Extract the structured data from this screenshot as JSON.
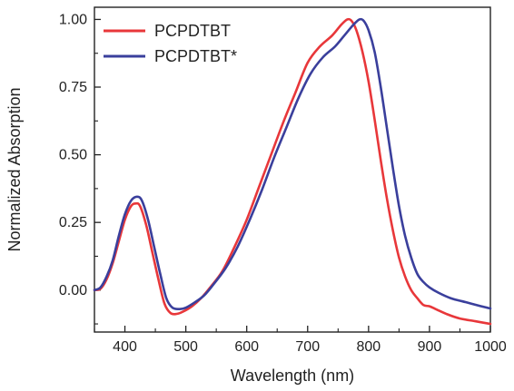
{
  "chart_data": {
    "type": "line",
    "xlabel": "Wavelength (nm)",
    "ylabel": "Normalized Absorption",
    "xlim": [
      350,
      1000
    ],
    "ylim": [
      -0.155,
      1.045
    ],
    "x_ticks": [
      400,
      500,
      600,
      700,
      800,
      900,
      1000
    ],
    "x_tick_labels": [
      "400",
      "500",
      "600",
      "700",
      "800",
      "900",
      "1000"
    ],
    "y_ticks": [
      0.0,
      0.25,
      0.5,
      0.75,
      1.0
    ],
    "y_tick_labels": [
      "0.00",
      "0.25",
      "0.50",
      "0.75",
      "1.00"
    ],
    "y_minor_ticks": [
      -0.125,
      0.125,
      0.375,
      0.625,
      0.875
    ],
    "grid": false,
    "legend_position": "top-left",
    "series": [
      {
        "name": "PCPDTBT",
        "color": "#e8373a",
        "points": [
          [
            350,
            0.0
          ],
          [
            360,
            0.005
          ],
          [
            370,
            0.04
          ],
          [
            380,
            0.1
          ],
          [
            390,
            0.18
          ],
          [
            400,
            0.26
          ],
          [
            410,
            0.31
          ],
          [
            418,
            0.32
          ],
          [
            425,
            0.31
          ],
          [
            435,
            0.24
          ],
          [
            445,
            0.14
          ],
          [
            455,
            0.04
          ],
          [
            465,
            -0.05
          ],
          [
            475,
            -0.085
          ],
          [
            485,
            -0.088
          ],
          [
            495,
            -0.08
          ],
          [
            510,
            -0.06
          ],
          [
            525,
            -0.03
          ],
          [
            540,
            0.01
          ],
          [
            560,
            0.07
          ],
          [
            580,
            0.16
          ],
          [
            600,
            0.26
          ],
          [
            620,
            0.38
          ],
          [
            640,
            0.5
          ],
          [
            660,
            0.62
          ],
          [
            680,
            0.73
          ],
          [
            700,
            0.84
          ],
          [
            720,
            0.9
          ],
          [
            740,
            0.94
          ],
          [
            755,
            0.98
          ],
          [
            765,
            1.0
          ],
          [
            772,
            0.995
          ],
          [
            780,
            0.96
          ],
          [
            790,
            0.88
          ],
          [
            800,
            0.77
          ],
          [
            810,
            0.63
          ],
          [
            820,
            0.48
          ],
          [
            830,
            0.34
          ],
          [
            840,
            0.22
          ],
          [
            850,
            0.12
          ],
          [
            860,
            0.05
          ],
          [
            870,
            0.0
          ],
          [
            880,
            -0.03
          ],
          [
            890,
            -0.055
          ],
          [
            900,
            -0.06
          ],
          [
            910,
            -0.07
          ],
          [
            930,
            -0.09
          ],
          [
            950,
            -0.105
          ],
          [
            975,
            -0.115
          ],
          [
            1000,
            -0.125
          ]
        ]
      },
      {
        "name": "PCPDTBT*",
        "color": "#3a3f9c",
        "points": [
          [
            350,
            0.0
          ],
          [
            360,
            0.01
          ],
          [
            370,
            0.05
          ],
          [
            380,
            0.11
          ],
          [
            390,
            0.2
          ],
          [
            400,
            0.28
          ],
          [
            410,
            0.33
          ],
          [
            420,
            0.345
          ],
          [
            428,
            0.33
          ],
          [
            438,
            0.26
          ],
          [
            448,
            0.16
          ],
          [
            458,
            0.06
          ],
          [
            468,
            -0.03
          ],
          [
            478,
            -0.065
          ],
          [
            490,
            -0.07
          ],
          [
            500,
            -0.065
          ],
          [
            515,
            -0.045
          ],
          [
            530,
            -0.02
          ],
          [
            545,
            0.02
          ],
          [
            565,
            0.08
          ],
          [
            585,
            0.16
          ],
          [
            605,
            0.26
          ],
          [
            625,
            0.37
          ],
          [
            645,
            0.49
          ],
          [
            665,
            0.6
          ],
          [
            685,
            0.71
          ],
          [
            705,
            0.8
          ],
          [
            725,
            0.86
          ],
          [
            745,
            0.9
          ],
          [
            760,
            0.94
          ],
          [
            775,
            0.98
          ],
          [
            785,
            1.0
          ],
          [
            792,
            0.995
          ],
          [
            800,
            0.96
          ],
          [
            810,
            0.88
          ],
          [
            820,
            0.75
          ],
          [
            830,
            0.6
          ],
          [
            840,
            0.45
          ],
          [
            850,
            0.31
          ],
          [
            860,
            0.2
          ],
          [
            870,
            0.12
          ],
          [
            880,
            0.06
          ],
          [
            890,
            0.03
          ],
          [
            900,
            0.01
          ],
          [
            915,
            -0.01
          ],
          [
            935,
            -0.03
          ],
          [
            960,
            -0.045
          ],
          [
            985,
            -0.06
          ],
          [
            1000,
            -0.068
          ]
        ]
      }
    ]
  }
}
